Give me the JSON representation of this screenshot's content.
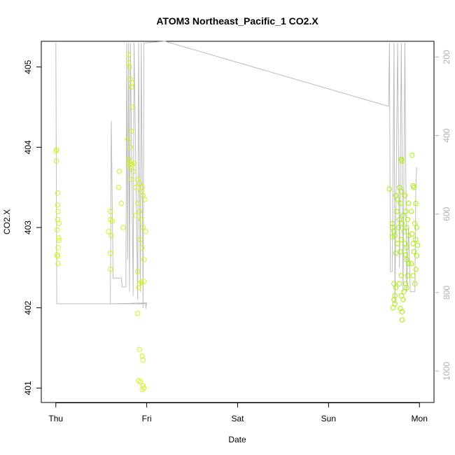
{
  "chart_data": {
    "type": "scatter",
    "title": "ATOM3 Northeast_Pacific_1 CO2.X",
    "xlabel": "Date",
    "ylabel": "CO2.X",
    "x_ticks": [
      "Thu",
      "Fri",
      "Sat",
      "Sun",
      "Mon"
    ],
    "x_unit": "days since Thu 00:00",
    "xlim": [
      -0.16,
      4.16
    ],
    "ylim": [
      400.82,
      405.32
    ],
    "y_ticks": [
      401,
      402,
      403,
      404,
      405
    ],
    "y2_ticks": [
      200,
      400,
      600,
      800,
      1000
    ],
    "y2lim": [
      1080,
      160
    ],
    "grid": false,
    "colors": {
      "scatter_a": "#d4f218",
      "scatter_b": "#a8f000",
      "line": "#bdbdbd"
    },
    "series": [
      {
        "kind": "points",
        "values": [
          [
            0.01,
            403.97
          ],
          [
            0.0,
            403.95
          ],
          [
            0.005,
            403.83
          ],
          [
            0.02,
            403.43
          ],
          [
            0.02,
            403.28
          ],
          [
            0.025,
            403.2
          ],
          [
            0.02,
            403.1
          ],
          [
            0.035,
            403.05
          ],
          [
            0.015,
            402.97
          ],
          [
            0.03,
            402.87
          ],
          [
            0.035,
            402.84
          ],
          [
            0.025,
            402.75
          ],
          [
            0.015,
            402.66
          ],
          [
            0.02,
            402.64
          ],
          [
            0.025,
            402.55
          ],
          [
            0.6,
            403.2
          ],
          [
            0.6,
            403.1
          ],
          [
            0.62,
            403.08
          ],
          [
            0.58,
            402.95
          ],
          [
            0.61,
            402.9
          ],
          [
            0.6,
            402.68
          ],
          [
            0.6,
            402.48
          ],
          [
            0.7,
            403.7
          ],
          [
            0.69,
            403.5
          ],
          [
            0.72,
            403.3
          ],
          [
            0.74,
            403.0
          ],
          [
            0.8,
            405.15
          ],
          [
            0.8,
            405.05
          ],
          [
            0.81,
            405.0
          ],
          [
            0.82,
            404.85
          ],
          [
            0.84,
            404.8
          ],
          [
            0.83,
            404.75
          ],
          [
            0.84,
            404.5
          ],
          [
            0.83,
            404.2
          ],
          [
            0.79,
            404.1
          ],
          [
            0.82,
            404.0
          ],
          [
            0.8,
            403.85
          ],
          [
            0.8,
            403.8
          ],
          [
            0.82,
            403.8
          ],
          [
            0.84,
            403.78
          ],
          [
            0.86,
            403.8
          ],
          [
            0.81,
            403.75
          ],
          [
            0.85,
            403.7
          ],
          [
            0.83,
            403.6
          ],
          [
            0.88,
            403.5
          ],
          [
            0.9,
            403.6
          ],
          [
            0.92,
            403.55
          ],
          [
            0.95,
            403.5
          ],
          [
            0.94,
            403.45
          ],
          [
            0.96,
            403.4
          ],
          [
            0.98,
            403.35
          ],
          [
            0.9,
            403.3
          ],
          [
            0.92,
            403.2
          ],
          [
            0.88,
            403.15
          ],
          [
            0.94,
            403.1
          ],
          [
            0.96,
            403.0
          ],
          [
            0.99,
            402.95
          ],
          [
            0.93,
            402.85
          ],
          [
            0.95,
            402.75
          ],
          [
            0.97,
            402.6
          ],
          [
            0.9,
            402.45
          ],
          [
            0.92,
            402.3
          ],
          [
            0.94,
            402.32
          ],
          [
            0.97,
            402.33
          ],
          [
            0.91,
            402.25
          ],
          [
            0.9,
            401.93
          ],
          [
            0.92,
            401.48
          ],
          [
            0.95,
            401.4
          ],
          [
            0.96,
            401.35
          ],
          [
            0.91,
            401.09
          ],
          [
            0.93,
            401.08
          ],
          [
            0.96,
            401.03
          ],
          [
            0.97,
            401.0
          ],
          [
            0.95,
            400.98
          ]
        ]
      },
      {
        "kind": "points",
        "values": [
          [
            3.67,
            403.48
          ],
          [
            3.7,
            403.05
          ],
          [
            3.7,
            403.0
          ],
          [
            3.72,
            402.95
          ],
          [
            3.7,
            402.88
          ],
          [
            3.74,
            403.4
          ],
          [
            3.76,
            403.35
          ],
          [
            3.75,
            403.2
          ],
          [
            3.78,
            403.1
          ],
          [
            3.77,
            403.0
          ],
          [
            3.73,
            402.9
          ],
          [
            3.76,
            402.8
          ],
          [
            3.74,
            402.68
          ],
          [
            3.72,
            402.3
          ],
          [
            3.74,
            402.25
          ],
          [
            3.73,
            402.15
          ],
          [
            3.72,
            402.1
          ],
          [
            3.73,
            402.05
          ],
          [
            3.71,
            402.0
          ],
          [
            3.78,
            403.5
          ],
          [
            3.8,
            403.45
          ],
          [
            3.79,
            403.3
          ],
          [
            3.82,
            403.15
          ],
          [
            3.81,
            403.05
          ],
          [
            3.83,
            402.95
          ],
          [
            3.8,
            402.85
          ],
          [
            3.79,
            402.7
          ],
          [
            3.8,
            402.4
          ],
          [
            3.78,
            402.3
          ],
          [
            3.8,
            402.15
          ],
          [
            3.79,
            401.99
          ],
          [
            3.81,
            401.95
          ],
          [
            3.81,
            401.85
          ],
          [
            3.8,
            403.85
          ],
          [
            3.81,
            403.83
          ],
          [
            3.84,
            403.4
          ],
          [
            3.85,
            403.2
          ],
          [
            3.86,
            403.0
          ],
          [
            3.84,
            402.8
          ],
          [
            3.85,
            402.66
          ],
          [
            3.86,
            402.6
          ],
          [
            3.83,
            402.2
          ],
          [
            3.82,
            402.1
          ],
          [
            3.85,
            402.3
          ],
          [
            3.86,
            402.25
          ],
          [
            3.88,
            403.3
          ],
          [
            3.87,
            403.1
          ],
          [
            3.88,
            402.9
          ],
          [
            3.86,
            402.75
          ],
          [
            3.88,
            402.55
          ],
          [
            3.87,
            402.4
          ],
          [
            3.92,
            403.9
          ],
          [
            3.93,
            403.52
          ],
          [
            3.94,
            403.5
          ],
          [
            3.91,
            403.2
          ],
          [
            3.95,
            403.05
          ],
          [
            3.92,
            402.92
          ],
          [
            3.93,
            402.8
          ],
          [
            3.94,
            402.7
          ],
          [
            3.91,
            402.55
          ],
          [
            3.93,
            402.4
          ],
          [
            3.95,
            402.3
          ],
          [
            3.96,
            403.3
          ],
          [
            3.97,
            403.0
          ],
          [
            3.96,
            402.85
          ],
          [
            3.98,
            402.78
          ],
          [
            3.97,
            402.65
          ],
          [
            3.96,
            402.48
          ]
        ]
      },
      {
        "kind": "line",
        "values": [
          [
            0.0,
            405.3
          ],
          [
            0.01,
            402.05
          ],
          [
            0.99,
            402.05
          ],
          [
            0.99,
            401.99
          ],
          [
            1.0,
            402.06
          ],
          [
            0.6,
            402.05
          ],
          [
            0.61,
            404.33
          ],
          [
            0.63,
            402.37
          ],
          [
            0.72,
            402.37
          ],
          [
            0.73,
            402.26
          ],
          [
            0.77,
            402.26
          ],
          [
            0.78,
            405.3
          ],
          [
            0.79,
            402.6
          ],
          [
            0.8,
            405.3
          ],
          [
            0.81,
            402.2
          ],
          [
            0.82,
            405.3
          ],
          [
            0.85,
            402.15
          ],
          [
            0.86,
            405.3
          ],
          [
            0.9,
            402.1
          ],
          [
            0.91,
            405.3
          ],
          [
            0.93,
            402.2
          ],
          [
            0.94,
            405.3
          ],
          [
            0.96,
            402.0
          ],
          [
            0.97,
            405.3
          ],
          [
            1.2,
            405.35
          ],
          [
            3.66,
            404.51
          ],
          [
            3.67,
            405.3
          ],
          [
            3.68,
            402.45
          ],
          [
            3.7,
            402.45
          ],
          [
            3.72,
            405.3
          ],
          [
            3.73,
            402.05
          ],
          [
            3.76,
            405.3
          ],
          [
            3.78,
            402.5
          ],
          [
            3.8,
            405.3
          ],
          [
            3.82,
            402.2
          ],
          [
            3.84,
            405.3
          ],
          [
            3.86,
            402.2
          ],
          [
            3.88,
            403.0
          ],
          [
            3.9,
            402.2
          ],
          [
            3.95,
            402.2
          ],
          [
            3.96,
            403.5
          ],
          [
            3.97,
            403.75
          ]
        ]
      }
    ]
  }
}
